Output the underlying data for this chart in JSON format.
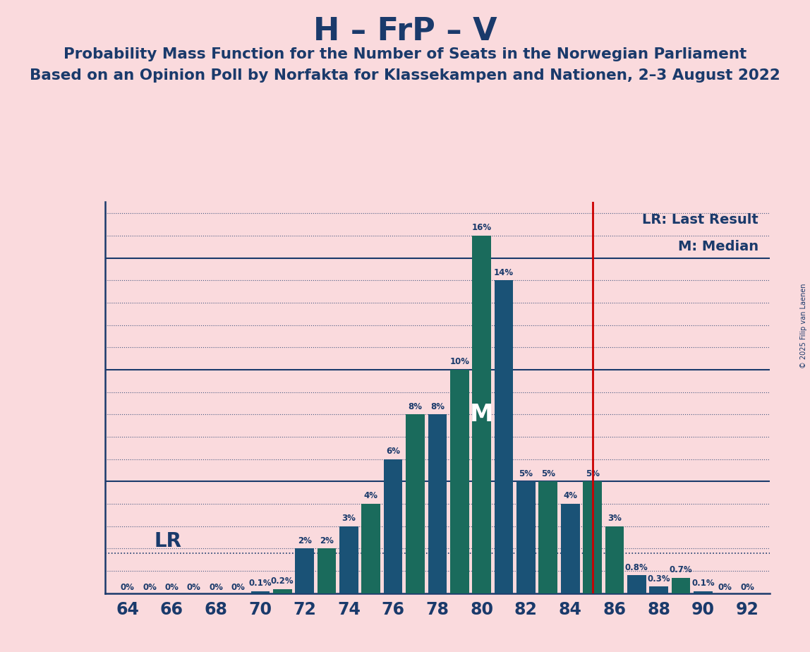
{
  "title": "H – FrP – V",
  "subtitle1": "Probability Mass Function for the Number of Seats in the Norwegian Parliament",
  "subtitle2": "Based on an Opinion Poll by Norfakta for Klassekampen and Nationen, 2–3 August 2022",
  "copyright": "© 2025 Filip van Laenen",
  "seats": [
    64,
    65,
    66,
    67,
    68,
    69,
    70,
    71,
    72,
    73,
    74,
    75,
    76,
    77,
    78,
    79,
    80,
    81,
    82,
    83,
    84,
    85,
    86,
    87,
    88,
    89,
    90,
    91,
    92
  ],
  "values": [
    0.0,
    0.0,
    0.0,
    0.0,
    0.0,
    0.0,
    0.1,
    0.2,
    2.0,
    2.0,
    3.0,
    4.0,
    6.0,
    8.0,
    8.0,
    10.0,
    16.0,
    14.0,
    5.0,
    5.0,
    4.0,
    5.0,
    3.0,
    0.8,
    0.3,
    0.7,
    0.1,
    0.0,
    0.0
  ],
  "labels": [
    "0%",
    "0%",
    "0%",
    "0%",
    "0%",
    "0%",
    "0.1%",
    "0.2%",
    "2%",
    "2%",
    "3%",
    "4%",
    "6%",
    "8%",
    "8%",
    "10%",
    "16%",
    "14%",
    "5%",
    "5%",
    "4%",
    "5%",
    "3%",
    "0.8%",
    "0.3%",
    "0.7%",
    "0.1%",
    "0%",
    "0%"
  ],
  "colors": [
    "#1a5276",
    "#1a6b5c",
    "#1a5276",
    "#1a6b5c",
    "#1a5276",
    "#1a6b5c",
    "#1a5276",
    "#1a6b5c",
    "#1a5276",
    "#1a6b5c",
    "#1a5276",
    "#1a6b5c",
    "#1a5276",
    "#1a6b5c",
    "#1a5276",
    "#1a6b5c",
    "#1a6b5c",
    "#1a5276",
    "#1a5276",
    "#1a6b5c",
    "#1a5276",
    "#1a6b5c",
    "#1a6b5c",
    "#1a5276",
    "#1a5276",
    "#1a6b5c",
    "#1a5276",
    "#1a6b5c",
    "#1a5276"
  ],
  "lr_line": 1.8,
  "lr_seat": 85,
  "median_seat": 80,
  "median_label": "M",
  "background_color": "#fadadd",
  "title_color": "#1a3a6b",
  "bar_color_blue": "#1a5276",
  "bar_color_teal": "#1a6b5c",
  "ylim_max": 17.5,
  "grid_color": "#1a3a6b",
  "red_line_color": "#cc0000",
  "solid_lines": [
    5,
    10,
    15
  ],
  "dotted_lines": [
    1,
    2,
    3,
    4,
    6,
    7,
    8,
    9,
    11,
    12,
    13,
    14,
    16,
    17
  ],
  "xmin": 63,
  "xmax": 93
}
